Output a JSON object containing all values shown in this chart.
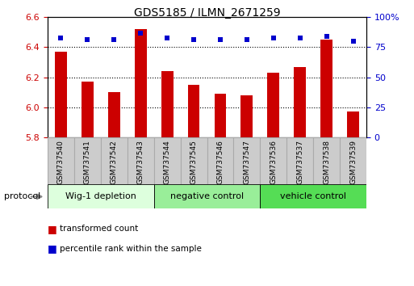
{
  "title": "GDS5185 / ILMN_2671259",
  "samples": [
    "GSM737540",
    "GSM737541",
    "GSM737542",
    "GSM737543",
    "GSM737544",
    "GSM737545",
    "GSM737546",
    "GSM737547",
    "GSM737536",
    "GSM737537",
    "GSM737538",
    "GSM737539"
  ],
  "bar_values": [
    6.37,
    6.17,
    6.1,
    6.52,
    6.24,
    6.15,
    6.09,
    6.08,
    6.23,
    6.27,
    6.45,
    5.97
  ],
  "percentile_values": [
    83,
    81,
    81,
    87,
    83,
    81,
    81,
    81,
    83,
    83,
    84,
    80
  ],
  "ylim_left": [
    5.8,
    6.6
  ],
  "ylim_right": [
    0,
    100
  ],
  "yticks_left": [
    5.8,
    6.0,
    6.2,
    6.4,
    6.6
  ],
  "yticks_right": [
    0,
    25,
    50,
    75,
    100
  ],
  "bar_color": "#cc0000",
  "dot_color": "#0000cc",
  "baseline": 5.8,
  "bar_width": 0.45,
  "groups": [
    {
      "label": "Wig-1 depletion",
      "start": 0,
      "end": 4,
      "color": "#ddffdd"
    },
    {
      "label": "negative control",
      "start": 4,
      "end": 8,
      "color": "#99ee99"
    },
    {
      "label": "vehicle control",
      "start": 8,
      "end": 12,
      "color": "#55dd55"
    }
  ],
  "legend_bar_label": "transformed count",
  "legend_dot_label": "percentile rank within the sample",
  "protocol_label": "protocol",
  "tick_label_color_left": "#cc0000",
  "tick_label_color_right": "#0000cc",
  "label_area_color": "#cccccc",
  "label_area_edge": "#aaaaaa"
}
